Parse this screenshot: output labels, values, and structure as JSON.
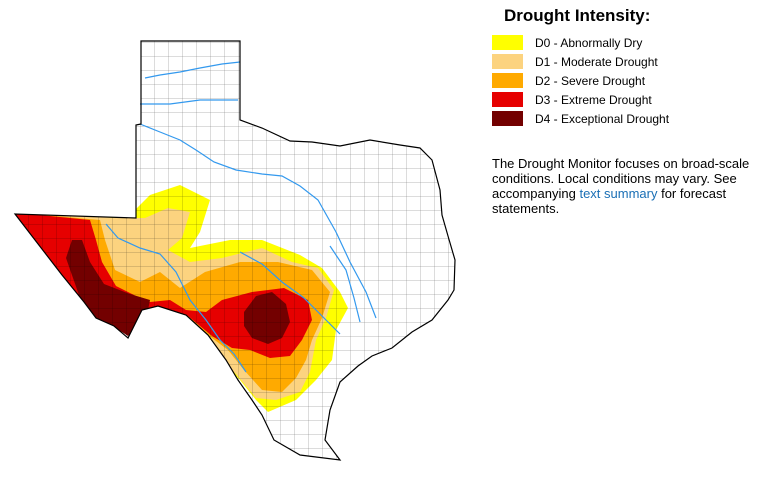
{
  "legend": {
    "title": "Drought Intensity:",
    "items": [
      {
        "code": "D0",
        "label": "D0 - Abnormally Dry",
        "color": "#FFFF00"
      },
      {
        "code": "D1",
        "label": "D1 - Moderate Drought",
        "color": "#FCD37F"
      },
      {
        "code": "D2",
        "label": "D2 - Severe Drought",
        "color": "#FFAA00"
      },
      {
        "code": "D3",
        "label": "D3 - Extreme Drought",
        "color": "#E60000"
      },
      {
        "code": "D4",
        "label": "D4 - Exceptional Drought",
        "color": "#730000"
      }
    ]
  },
  "note": {
    "before": "The Drought Monitor focuses on broad-scale conditions. Local conditions may vary. See accompanying ",
    "link": "text summary",
    "after": " for forecast statements."
  },
  "map": {
    "region": "Texas",
    "county_line_color": "#000000",
    "river_color": "#3399ee"
  }
}
